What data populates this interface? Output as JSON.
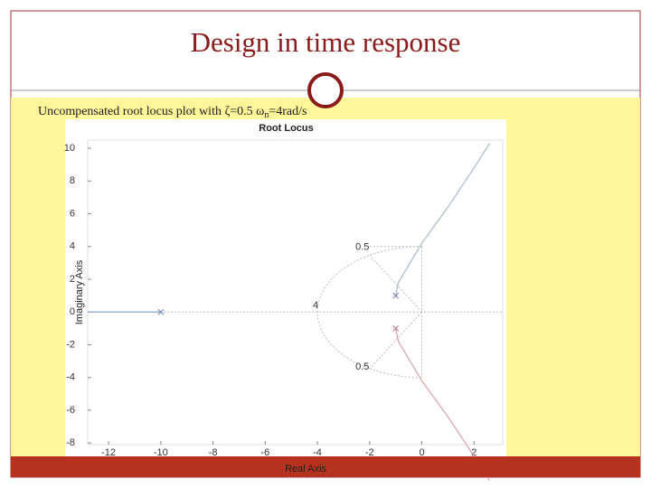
{
  "slide": {
    "title": "Design in time response",
    "caption": {
      "text": "Uncompensated root locus plot with ζ=0.5 ω",
      "subscript": "n",
      "suffix": "=4rad/s"
    }
  },
  "chart_data": {
    "type": "line",
    "title": "Root Locus",
    "x_label": "Real Axis",
    "y_label": "Imaginary Axis",
    "xlim": [
      -12.8,
      3.1
    ],
    "ylim": [
      -8.1,
      10.5
    ],
    "xticks": [
      -12,
      -10,
      -8,
      -6,
      -4,
      -2,
      0,
      2
    ],
    "yticks": [
      -8,
      -6,
      -4,
      -2,
      0,
      2,
      4,
      6,
      8,
      10
    ],
    "series": [
      {
        "color": "#8ea4cc",
        "x": [
          -10,
          -12.8
        ],
        "y": [
          0,
          0
        ]
      },
      {
        "color": "#a9b9cc",
        "x": [
          -1,
          -0.9,
          -0.6,
          -0.3,
          0,
          0.5,
          1,
          1.5,
          2,
          2.6
        ],
        "y": [
          1,
          1.8,
          2.6,
          3.4,
          4.2,
          5.3,
          6.4,
          7.6,
          8.8,
          10.3
        ]
      },
      {
        "color": "#d9a0a8",
        "x": [
          -1,
          -0.9,
          -0.6,
          -0.3,
          0,
          0.5,
          1,
          1.5,
          2,
          2.6
        ],
        "y": [
          -1,
          -1.8,
          -2.6,
          -3.4,
          -4.2,
          -5.3,
          -6.4,
          -7.6,
          -8.8,
          -10.3
        ]
      }
    ],
    "poles": {
      "x": [
        -10,
        -1,
        -1
      ],
      "y": [
        0,
        1,
        -1
      ],
      "colors": [
        "#6b7fc0",
        "#6b7fc0",
        "#c97080"
      ]
    },
    "annotations": [
      "0.5",
      "0.5",
      "4"
    ],
    "damping_radius": 4,
    "damping_ratio": 0.5
  }
}
